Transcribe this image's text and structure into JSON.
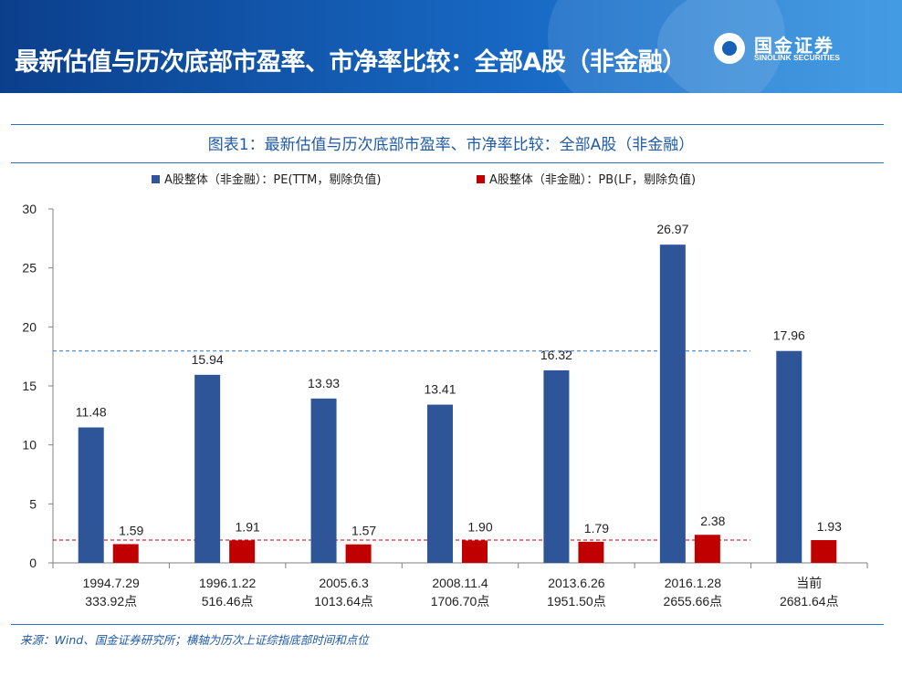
{
  "header": {
    "title": "最新估值与历次底部市盈率、市净率比较：全部A股（非金融）",
    "logo_cn": "国金证券",
    "logo_en": "SINOLINK SECURITIES"
  },
  "colors": {
    "pe": "#2e5597",
    "pb": "#c00000",
    "title_blue": "#1f5aa6"
  },
  "chart_data": {
    "type": "bar",
    "title": "图表1：最新估值与历次底部市盈率、市净率比较：全部A股（非金融）",
    "categories": [
      {
        "line1": "1994.7.29",
        "line2": "333.92点"
      },
      {
        "line1": "1996.1.22",
        "line2": "516.46点"
      },
      {
        "line1": "2005.6.3",
        "line2": "1013.64点"
      },
      {
        "line1": "2008.11.4",
        "line2": "1706.70点"
      },
      {
        "line1": "2013.6.26",
        "line2": "1951.50点"
      },
      {
        "line1": "2016.1.28",
        "line2": "2655.66点"
      },
      {
        "line1": "当前",
        "line2": "2681.64点"
      }
    ],
    "series": [
      {
        "name": "A股整体（非金融）：PE(TTM，剔除负值)",
        "values": [
          11.48,
          15.94,
          13.93,
          13.41,
          16.32,
          26.97,
          17.96
        ],
        "labels": [
          "11.48",
          "15.94",
          "13.93",
          "13.41",
          "16.32",
          "26.97",
          "17.96"
        ]
      },
      {
        "name": "A股整体（非金融）：PB(LF，剔除负值)",
        "values": [
          1.59,
          1.91,
          1.57,
          1.9,
          1.79,
          2.38,
          1.93
        ],
        "labels": [
          "1.59",
          "1.91",
          "1.57",
          "1.90",
          "1.79",
          "2.38",
          "1.93"
        ]
      }
    ],
    "reference_lines": [
      {
        "series": "PE",
        "value": 17.96
      },
      {
        "series": "PB",
        "value": 1.93
      }
    ],
    "ylim": [
      0,
      30
    ],
    "yticks": [
      0,
      5,
      10,
      15,
      20,
      25,
      30
    ],
    "legend_position": "top-center",
    "grid": false
  },
  "footer": {
    "source": "来源：Wind、国金证券研究所；横轴为历次上证综指底部时间和点位"
  }
}
